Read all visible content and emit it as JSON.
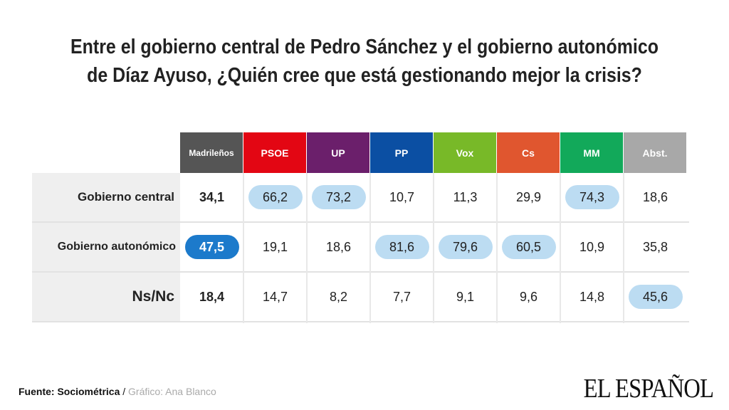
{
  "title_lines": [
    "Entre el gobierno central de Pedro Sánchez y el gobierno autonómico",
    "de Díaz Ayuso, ¿Quién cree que está gestionando mejor la crisis?"
  ],
  "chart_data": {
    "type": "table",
    "columns": [
      {
        "label": "Madrileños",
        "color": "#555555"
      },
      {
        "label": "PSOE",
        "color": "#e30613"
      },
      {
        "label": "UP",
        "color": "#6b1f6b"
      },
      {
        "label": "PP",
        "color": "#0b4fa3"
      },
      {
        "label": "Vox",
        "color": "#78b928"
      },
      {
        "label": "Cs",
        "color": "#e0562f"
      },
      {
        "label": "MM",
        "color": "#12a95a"
      },
      {
        "label": "Abst.",
        "color": "#a8a8a8"
      }
    ],
    "rows": [
      {
        "label": "Gobierno central",
        "values": [
          "34,1",
          "66,2",
          "73,2",
          "10,7",
          "11,3",
          "29,9",
          "74,3",
          "18,6"
        ],
        "highlight": [
          false,
          true,
          true,
          false,
          false,
          false,
          true,
          false
        ]
      },
      {
        "label": "Gobierno autonómico",
        "values": [
          "47,5",
          "19,1",
          "18,6",
          "81,6",
          "79,6",
          "60,5",
          "10,9",
          "35,8"
        ],
        "highlight": [
          true,
          false,
          false,
          true,
          true,
          true,
          false,
          false
        ]
      },
      {
        "label": "Ns/Nc",
        "values": [
          "18,4",
          "14,7",
          "8,2",
          "7,7",
          "9,1",
          "9,6",
          "14,8",
          "45,6"
        ],
        "highlight": [
          false,
          false,
          false,
          false,
          false,
          false,
          false,
          true
        ]
      }
    ],
    "highlight_color": "#bcdcf2",
    "madrilenos_highlight_color": "#1c7acb"
  },
  "footer": {
    "source_label": "Fuente: Sociométrica",
    "separator": " / ",
    "credit": "Gráfico: Ana Blanco"
  },
  "logo_text": "EL ESPAÑOL"
}
